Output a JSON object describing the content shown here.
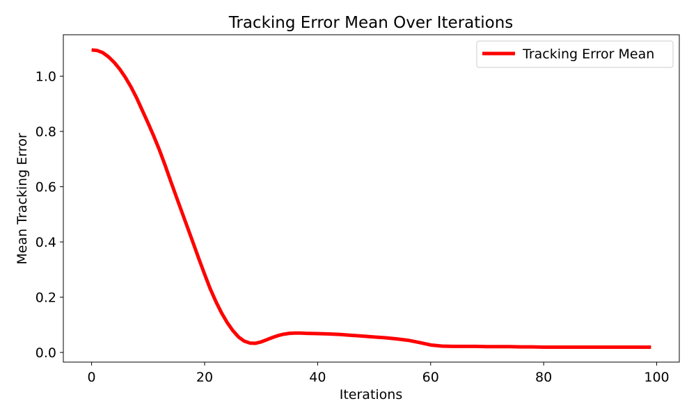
{
  "chart_data": {
    "type": "line",
    "title": "Tracking Error Mean Over Iterations",
    "xlabel": "Iterations",
    "ylabel": "Mean Tracking Error",
    "xlim": [
      -5,
      104
    ],
    "ylim": [
      -0.035,
      1.15
    ],
    "xticks": [
      0,
      20,
      40,
      60,
      80,
      100
    ],
    "xtick_labels": [
      "0",
      "20",
      "40",
      "60",
      "80",
      "100"
    ],
    "yticks": [
      0.0,
      0.2,
      0.4,
      0.6,
      0.8,
      1.0
    ],
    "ytick_labels": [
      "0.0",
      "0.2",
      "0.4",
      "0.6",
      "0.8",
      "1.0"
    ],
    "grid": false,
    "legend": {
      "placement": "top-right"
    },
    "series": [
      {
        "name": "Tracking Error Mean",
        "color": "#ff0000",
        "x": [
          0,
          1,
          2,
          3,
          4,
          5,
          6,
          7,
          8,
          9,
          10,
          11,
          12,
          13,
          14,
          15,
          16,
          17,
          18,
          19,
          20,
          21,
          22,
          23,
          24,
          25,
          26,
          27,
          28,
          29,
          30,
          31,
          32,
          33,
          34,
          35,
          36,
          37,
          38,
          40,
          42,
          44,
          46,
          48,
          50,
          52,
          54,
          56,
          58,
          60,
          62,
          64,
          66,
          68,
          70,
          72,
          74,
          76,
          78,
          80,
          82,
          84,
          86,
          88,
          90,
          92,
          94,
          96,
          98,
          99
        ],
        "y": [
          1.095,
          1.093,
          1.085,
          1.07,
          1.05,
          1.025,
          0.995,
          0.96,
          0.92,
          0.875,
          0.83,
          0.783,
          0.733,
          0.678,
          0.62,
          0.563,
          0.507,
          0.451,
          0.395,
          0.338,
          0.283,
          0.23,
          0.184,
          0.143,
          0.108,
          0.079,
          0.056,
          0.041,
          0.034,
          0.033,
          0.038,
          0.046,
          0.054,
          0.061,
          0.066,
          0.069,
          0.07,
          0.07,
          0.069,
          0.068,
          0.067,
          0.065,
          0.062,
          0.059,
          0.056,
          0.053,
          0.049,
          0.044,
          0.036,
          0.027,
          0.023,
          0.022,
          0.022,
          0.022,
          0.021,
          0.021,
          0.021,
          0.02,
          0.02,
          0.019,
          0.019,
          0.019,
          0.019,
          0.019,
          0.019,
          0.019,
          0.019,
          0.019,
          0.019,
          0.019
        ]
      }
    ]
  }
}
